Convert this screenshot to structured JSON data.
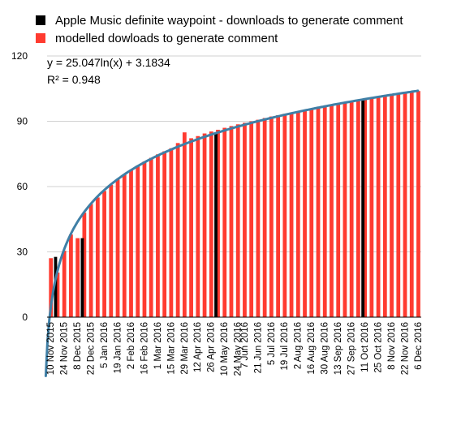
{
  "legend": [
    {
      "label": "Apple Music definite waypoint - downloads to generate comment",
      "color": "#000000"
    },
    {
      "label": "modelled dowloads to generate comment",
      "color": "#ff3b30"
    }
  ],
  "trendline": {
    "equation": "y = 25.047ln(x) + 3.1834",
    "r_squared": "R² = 0.948",
    "a": 25.047,
    "b": 3.1834,
    "color": "#3f7fa6"
  },
  "chart_data": {
    "type": "bar",
    "ylim": [
      0,
      120
    ],
    "yticks": [
      0,
      30,
      60,
      90,
      120
    ],
    "grid": true,
    "legend_position": "top",
    "xtick_labels": [
      "10 Nov 2015",
      "24 Nov 2015",
      "8 Dec 2015",
      "22 Dec 2015",
      "5 Jan 2016",
      "19 Jan 2016",
      "2 Feb 2016",
      "16 Feb 2016",
      "1 Mar 2016",
      "15 Mar 2016",
      "29 Mar 2016",
      "12 Apr 2016",
      "26 Apr 2016",
      "10 May 2016",
      "24 May 2016",
      "7 Jun 2016",
      "21 Jun 2016",
      "5 Jul 2016",
      "19 Jul 2016",
      "2 Aug 2016",
      "16 Aug 2016",
      "30 Aug 2016",
      "13 Sep 2016",
      "27 Sep 2016",
      "11 Oct 2016",
      "25 Oct 2016",
      "8 Nov 2016",
      "22 Nov 2016",
      "6 Dec 2016"
    ],
    "series": [
      {
        "name": "modelled dowloads to generate comment",
        "color": "#ff3b30",
        "values": [
          27.1,
          20.5,
          30.5,
          38.0,
          36.3,
          48.0,
          52.0,
          55.0,
          58.0,
          60.8,
          63.3,
          65.6,
          67.7,
          69.7,
          71.5,
          73.2,
          74.8,
          76.2,
          77.6,
          80.0,
          84.9,
          82.2,
          83.2,
          84.4,
          85.3,
          86.1,
          87.0,
          87.8,
          88.6,
          89.3,
          90.0,
          90.7,
          91.5,
          92.2,
          92.8,
          93.4,
          94.0,
          94.6,
          95.2,
          95.8,
          96.4,
          97.0,
          97.5,
          98.0,
          98.6,
          99.1,
          99.6,
          100.1,
          100.6,
          101.1,
          101.6,
          102.0,
          102.5,
          103.0,
          103.4,
          103.9
        ]
      },
      {
        "name": "Apple Music definite waypoint - downloads to generate comment",
        "color": "#000000",
        "points": [
          {
            "index": 1,
            "value": 27.7
          },
          {
            "index": 5,
            "value": 36.3
          },
          {
            "index": 25,
            "value": 84.9
          },
          {
            "index": 47,
            "value": 99.9
          }
        ]
      }
    ]
  }
}
